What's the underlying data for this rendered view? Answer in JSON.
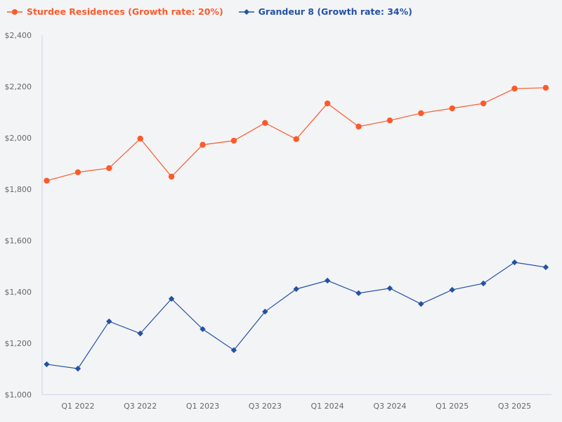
{
  "chart_data": {
    "type": "line",
    "title": "",
    "xlabel": "",
    "ylabel": "",
    "ylim": [
      1000,
      2400
    ],
    "yticks": [
      1000,
      1200,
      1400,
      1600,
      1800,
      2000,
      2200,
      2400
    ],
    "ytick_labels": [
      "$1,000",
      "$1,200",
      "$1,400",
      "$1,600",
      "$1,800",
      "$2,000",
      "$2,200",
      "$2,400"
    ],
    "x": [
      "Q4 2021",
      "Q1 2022",
      "Q2 2022",
      "Q3 2022",
      "Q4 2022",
      "Q1 2023",
      "Q2 2023",
      "Q3 2023",
      "Q4 2023",
      "Q1 2024",
      "Q2 2024",
      "Q3 2024",
      "Q4 2024",
      "Q1 2025",
      "Q2 2025",
      "Q3 2025",
      "Q4 2025"
    ],
    "xtick_labels": [
      "Q1 2022",
      "Q3 2022",
      "Q1 2023",
      "Q3 2023",
      "Q1 2024",
      "Q3 2024",
      "Q1 2025",
      "Q3 2025"
    ],
    "grid": false,
    "legend_placement": "top-left",
    "series": [
      {
        "name": "Sturdee Residences (Growth rate: 20%)",
        "color": "#fc5a2a",
        "marker": "circle",
        "values": [
          1833,
          1866,
          1882,
          1997,
          1849,
          1973,
          1989,
          2058,
          1995,
          2134,
          2044,
          2068,
          2096,
          2115,
          2134,
          2192,
          2195
        ]
      },
      {
        "name": "Grandeur 8 (Growth rate: 34%)",
        "color": "#2451a3",
        "marker": "diamond",
        "values": [
          1118,
          1101,
          1285,
          1238,
          1373,
          1255,
          1173,
          1323,
          1411,
          1444,
          1395,
          1414,
          1353,
          1408,
          1433,
          1515,
          1496
        ]
      }
    ]
  }
}
